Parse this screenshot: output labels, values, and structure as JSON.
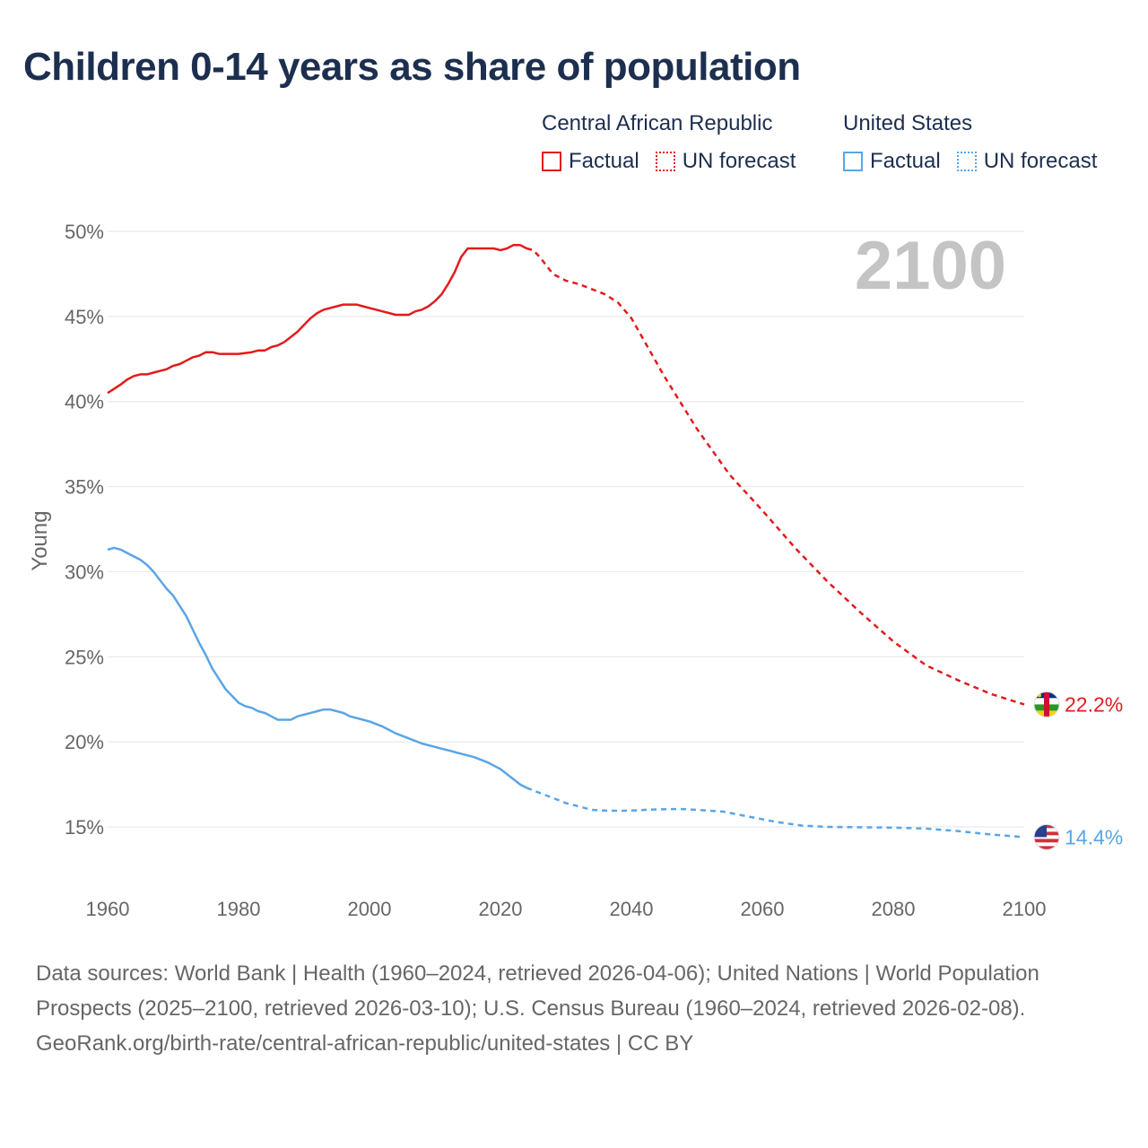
{
  "title": "Children 0-14 years as share of population",
  "legend": {
    "groups": [
      {
        "name": "Central African Republic",
        "color": "#e31a1c",
        "factual": "Factual",
        "forecast": "UN forecast"
      },
      {
        "name": "United States",
        "color": "#5aa5e6",
        "factual": "Factual",
        "forecast": "UN forecast"
      }
    ]
  },
  "year_watermark": "2100",
  "footer": {
    "sources": "Data sources: World Bank | Health (1960–2024, retrieved 2026-04-06); United Nations | World Population Prospects (2025–2100, retrieved 2026-03-10); U.S. Census Bureau (1960–2024, retrieved 2026-02-08).",
    "url": "GeoRank.org/birth-rate/central-african-republic/united-states | CC BY"
  },
  "chart_data": {
    "type": "line",
    "title": "Children 0-14 years as share of population",
    "xlabel": "",
    "ylabel": "Young",
    "xlim": [
      1960,
      2100
    ],
    "ylim": [
      12,
      51
    ],
    "x_ticks": [
      1960,
      1980,
      2000,
      2020,
      2040,
      2060,
      2080,
      2100
    ],
    "x_tick_labels": [
      "1960",
      "1980",
      "2000",
      "2020",
      "2040",
      "2060",
      "2080",
      "2100"
    ],
    "y_ticks": [
      15,
      20,
      25,
      30,
      35,
      40,
      45,
      50
    ],
    "y_tick_labels": [
      "15%",
      "20%",
      "25%",
      "30%",
      "35%",
      "40%",
      "45%",
      "50%"
    ],
    "grid": true,
    "series": [
      {
        "name": "Central African Republic",
        "color": "#e31a1c",
        "end_label": "22.2%",
        "factual": {
          "x": [
            1960,
            1962,
            1963,
            1964,
            1965,
            1966,
            1967,
            1968,
            1969,
            1970,
            1971,
            1972,
            1973,
            1974,
            1975,
            1976,
            1977,
            1978,
            1980,
            1982,
            1983,
            1984,
            1985,
            1986,
            1987,
            1988,
            1989,
            1990,
            1991,
            1992,
            1993,
            1994,
            1995,
            1996,
            1997,
            1998,
            1999,
            2000,
            2002,
            2004,
            2005,
            2006,
            2007,
            2008,
            2009,
            2010,
            2011,
            2012,
            2013,
            2014,
            2015,
            2016,
            2017,
            2018,
            2019,
            2020,
            2021,
            2022,
            2023,
            2024
          ],
          "y": [
            40.5,
            41.0,
            41.3,
            41.5,
            41.6,
            41.6,
            41.7,
            41.8,
            41.9,
            42.1,
            42.2,
            42.4,
            42.6,
            42.7,
            42.9,
            42.9,
            42.8,
            42.8,
            42.8,
            42.9,
            43.0,
            43.0,
            43.2,
            43.3,
            43.5,
            43.8,
            44.1,
            44.5,
            44.9,
            45.2,
            45.4,
            45.5,
            45.6,
            45.7,
            45.7,
            45.7,
            45.6,
            45.5,
            45.3,
            45.1,
            45.1,
            45.1,
            45.3,
            45.4,
            45.6,
            45.9,
            46.3,
            46.9,
            47.6,
            48.5,
            49.0,
            49.0,
            49.0,
            49.0,
            49.0,
            48.9,
            49.0,
            49.2,
            49.2,
            49.0
          ]
        },
        "forecast": {
          "x": [
            2024,
            2025,
            2026,
            2027,
            2028,
            2030,
            2032,
            2034,
            2036,
            2038,
            2040,
            2045,
            2050,
            2055,
            2060,
            2065,
            2070,
            2075,
            2080,
            2085,
            2090,
            2095,
            2100
          ],
          "y": [
            49.0,
            48.9,
            48.5,
            48.0,
            47.5,
            47.1,
            46.9,
            46.6,
            46.3,
            45.8,
            44.9,
            41.5,
            38.4,
            35.7,
            33.6,
            31.4,
            29.4,
            27.6,
            25.9,
            24.5,
            23.6,
            22.8,
            22.2
          ]
        }
      },
      {
        "name": "United States",
        "color": "#5aa5e6",
        "end_label": "14.4%",
        "factual": {
          "x": [
            1960,
            1961,
            1962,
            1963,
            1964,
            1965,
            1966,
            1967,
            1968,
            1969,
            1970,
            1971,
            1972,
            1973,
            1974,
            1975,
            1976,
            1977,
            1978,
            1979,
            1980,
            1981,
            1982,
            1983,
            1984,
            1985,
            1986,
            1987,
            1988,
            1989,
            1990,
            1991,
            1992,
            1993,
            1994,
            1995,
            1996,
            1997,
            1998,
            1999,
            2000,
            2002,
            2004,
            2006,
            2008,
            2010,
            2012,
            2014,
            2016,
            2018,
            2019,
            2020,
            2021,
            2022,
            2023,
            2024
          ],
          "y": [
            31.3,
            31.4,
            31.3,
            31.1,
            30.9,
            30.7,
            30.4,
            30.0,
            29.5,
            29.0,
            28.6,
            28.0,
            27.4,
            26.6,
            25.8,
            25.1,
            24.3,
            23.7,
            23.1,
            22.7,
            22.3,
            22.1,
            22.0,
            21.8,
            21.7,
            21.5,
            21.3,
            21.3,
            21.3,
            21.5,
            21.6,
            21.7,
            21.8,
            21.9,
            21.9,
            21.8,
            21.7,
            21.5,
            21.4,
            21.3,
            21.2,
            20.9,
            20.5,
            20.2,
            19.9,
            19.7,
            19.5,
            19.3,
            19.1,
            18.8,
            18.6,
            18.4,
            18.1,
            17.8,
            17.5,
            17.3
          ]
        },
        "forecast": {
          "x": [
            2024,
            2026,
            2028,
            2030,
            2032,
            2034,
            2036,
            2038,
            2040,
            2042,
            2044,
            2046,
            2048,
            2050,
            2054,
            2058,
            2062,
            2066,
            2070,
            2075,
            2080,
            2085,
            2090,
            2095,
            2100
          ],
          "y": [
            17.3,
            17.0,
            16.7,
            16.4,
            16.2,
            16.0,
            15.96,
            15.95,
            15.96,
            16.0,
            16.03,
            16.05,
            16.05,
            16.0,
            15.9,
            15.6,
            15.3,
            15.08,
            15.0,
            14.98,
            14.96,
            14.9,
            14.75,
            14.55,
            14.4
          ]
        }
      }
    ]
  }
}
